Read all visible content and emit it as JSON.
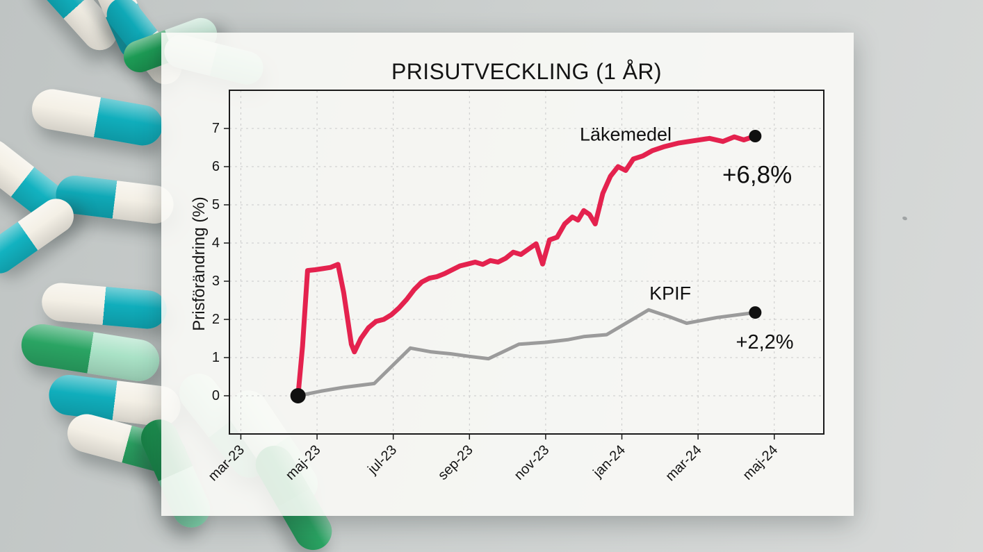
{
  "background": {
    "surface_colors": [
      "#bfc4c3",
      "#d8dad9"
    ],
    "pill_colors": {
      "teal": "#10aebc",
      "capsule_white": "#f4f0e6",
      "dark_green": "#1d9b55",
      "medium_green": "#2aa463",
      "mint": "#a9e2c6",
      "pale_mint": "#d8efe4"
    }
  },
  "card": {
    "background": "rgba(250,250,247,0.88)"
  },
  "chart_data": {
    "type": "line",
    "title": "PRISUTVECKLING (1 ÅR)",
    "ylabel": "Prisförändring (%)",
    "xlabel": "",
    "grid": true,
    "legend_position": "inline-annotations",
    "x_unit": "months since mar-23",
    "xlim": [
      -0.3,
      15.3
    ],
    "ylim": [
      -1,
      8
    ],
    "x_ticks": [
      {
        "pos": 0,
        "label": "mar-23"
      },
      {
        "pos": 2,
        "label": "maj-23"
      },
      {
        "pos": 4,
        "label": "jul-23"
      },
      {
        "pos": 6,
        "label": "sep-23"
      },
      {
        "pos": 8,
        "label": "nov-23"
      },
      {
        "pos": 10,
        "label": "jan-24"
      },
      {
        "pos": 12,
        "label": "mar-24"
      },
      {
        "pos": 14,
        "label": "maj-24"
      }
    ],
    "y_ticks": [
      0,
      1,
      2,
      3,
      4,
      5,
      6,
      7
    ],
    "series": [
      {
        "name": "Läkemedel",
        "color": "#e4224e",
        "width": 7,
        "end_value_label": "+6,8%",
        "points": [
          [
            1.5,
            0.0
          ],
          [
            1.62,
            1.3
          ],
          [
            1.75,
            3.28
          ],
          [
            1.95,
            3.3
          ],
          [
            2.15,
            3.33
          ],
          [
            2.35,
            3.36
          ],
          [
            2.55,
            3.44
          ],
          [
            2.7,
            2.7
          ],
          [
            2.9,
            1.35
          ],
          [
            2.98,
            1.15
          ],
          [
            3.15,
            1.5
          ],
          [
            3.35,
            1.78
          ],
          [
            3.55,
            1.95
          ],
          [
            3.75,
            2.0
          ],
          [
            3.95,
            2.12
          ],
          [
            4.15,
            2.3
          ],
          [
            4.35,
            2.52
          ],
          [
            4.55,
            2.78
          ],
          [
            4.75,
            2.98
          ],
          [
            4.95,
            3.08
          ],
          [
            5.15,
            3.12
          ],
          [
            5.35,
            3.2
          ],
          [
            5.55,
            3.3
          ],
          [
            5.75,
            3.4
          ],
          [
            5.95,
            3.45
          ],
          [
            6.15,
            3.5
          ],
          [
            6.35,
            3.44
          ],
          [
            6.55,
            3.54
          ],
          [
            6.75,
            3.5
          ],
          [
            6.95,
            3.6
          ],
          [
            7.15,
            3.76
          ],
          [
            7.35,
            3.7
          ],
          [
            7.55,
            3.84
          ],
          [
            7.75,
            3.98
          ],
          [
            7.92,
            3.45
          ],
          [
            8.1,
            4.08
          ],
          [
            8.3,
            4.15
          ],
          [
            8.5,
            4.5
          ],
          [
            8.7,
            4.68
          ],
          [
            8.85,
            4.6
          ],
          [
            9.0,
            4.85
          ],
          [
            9.15,
            4.75
          ],
          [
            9.3,
            4.5
          ],
          [
            9.5,
            5.3
          ],
          [
            9.7,
            5.75
          ],
          [
            9.9,
            6.0
          ],
          [
            10.1,
            5.9
          ],
          [
            10.3,
            6.2
          ],
          [
            10.55,
            6.28
          ],
          [
            10.8,
            6.42
          ],
          [
            11.1,
            6.52
          ],
          [
            11.5,
            6.62
          ],
          [
            11.9,
            6.68
          ],
          [
            12.3,
            6.74
          ],
          [
            12.65,
            6.66
          ],
          [
            12.95,
            6.78
          ],
          [
            13.2,
            6.7
          ],
          [
            13.5,
            6.8
          ]
        ]
      },
      {
        "name": "KPIF",
        "color": "#9b9b9b",
        "width": 5,
        "end_value_label": "+2,2%",
        "points": [
          [
            1.5,
            0.0
          ],
          [
            2.1,
            0.12
          ],
          [
            2.7,
            0.22
          ],
          [
            3.5,
            0.32
          ],
          [
            4.45,
            1.25
          ],
          [
            5.0,
            1.15
          ],
          [
            5.5,
            1.1
          ],
          [
            6.0,
            1.03
          ],
          [
            6.5,
            0.97
          ],
          [
            7.3,
            1.35
          ],
          [
            8.0,
            1.4
          ],
          [
            8.6,
            1.47
          ],
          [
            9.0,
            1.55
          ],
          [
            9.6,
            1.6
          ],
          [
            10.7,
            2.25
          ],
          [
            11.3,
            2.05
          ],
          [
            11.7,
            1.9
          ],
          [
            12.5,
            2.05
          ],
          [
            13.5,
            2.18
          ]
        ]
      }
    ],
    "labels": [
      {
        "name": "series-label-lakemedel",
        "text": "Läkemedel",
        "x": 10.1,
        "y": 6.85,
        "size": 27,
        "anchor": "middle"
      },
      {
        "name": "end-value-lakemedel",
        "text": "+6,8%",
        "x": 13.55,
        "y": 5.78,
        "size": 35,
        "anchor": "middle"
      },
      {
        "name": "series-label-kpif",
        "text": "KPIF",
        "x": 11.27,
        "y": 2.68,
        "size": 27,
        "anchor": "middle"
      },
      {
        "name": "end-value-kpif",
        "text": "+2,2%",
        "x": 13.75,
        "y": 1.4,
        "size": 29,
        "anchor": "middle"
      }
    ],
    "markers": [
      {
        "x": 1.5,
        "y": 0.0,
        "r": 11
      },
      {
        "x": 13.5,
        "y": 6.8,
        "r": 9
      },
      {
        "x": 13.5,
        "y": 2.18,
        "r": 9
      }
    ]
  }
}
